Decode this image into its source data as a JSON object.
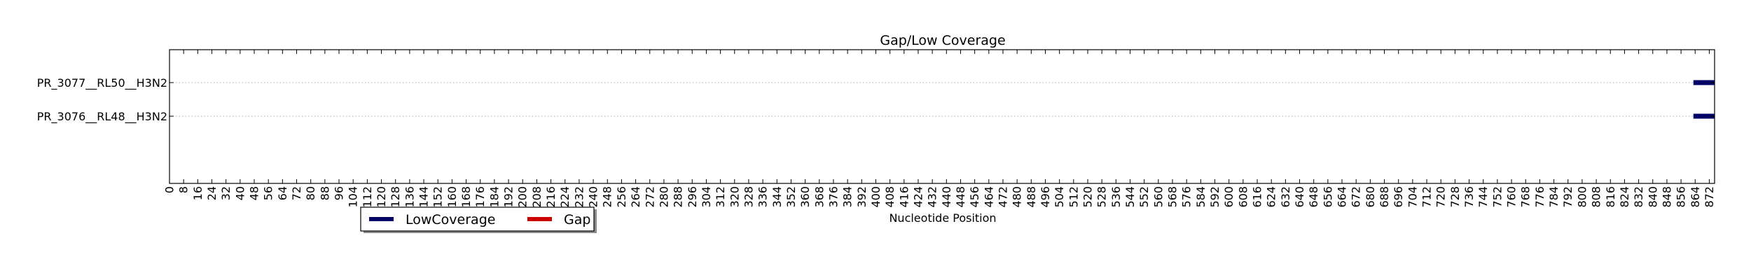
{
  "chart_data": {
    "type": "broken-bar",
    "title": "Gap/Low Coverage",
    "xlabel": "Nucleotide Position",
    "ylabel": "",
    "xlim": [
      0,
      875
    ],
    "x_tick_step": 8,
    "x_tick_max": 872,
    "grid": "horizontal-dotted",
    "legend_placement": "bottom-left-outside",
    "categories": [
      "PR_3077__RL50__H3N2",
      "PR_3076__RL48__H3N2"
    ],
    "series": [
      {
        "name": "LowCoverage",
        "color": "#000066",
        "segments": [
          {
            "category": "PR_3077__RL50__H3N2",
            "start": 863,
            "end": 875
          },
          {
            "category": "PR_3076__RL48__H3N2",
            "start": 863,
            "end": 875
          }
        ]
      },
      {
        "name": "Gap",
        "color": "#cc0000",
        "segments": []
      }
    ]
  }
}
